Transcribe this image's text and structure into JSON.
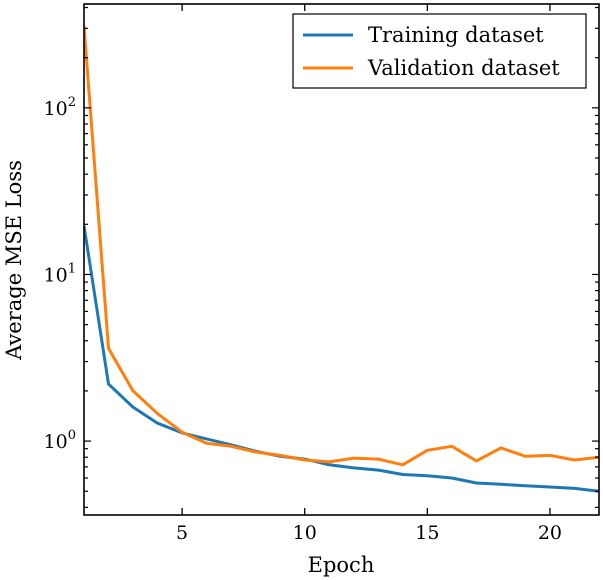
{
  "chart_data": {
    "type": "line",
    "title": "",
    "xlabel": "Epoch",
    "ylabel": "Average MSE Loss",
    "xlim": [
      1,
      22
    ],
    "ylim": [
      0.36,
      420
    ],
    "yscale": "log",
    "xticks": [
      5,
      10,
      15,
      20
    ],
    "xtick_labels": [
      "5",
      "10",
      "15",
      "20"
    ],
    "yticks": [
      1,
      10,
      100
    ],
    "ytick_labels": [
      {
        "base": "10",
        "exp": "0"
      },
      {
        "base": "10",
        "exp": "1"
      },
      {
        "base": "10",
        "exp": "2"
      }
    ],
    "legend_position": "top-right",
    "grid": false,
    "x": [
      1,
      2,
      3,
      4,
      5,
      6,
      7,
      8,
      9,
      10,
      11,
      12,
      13,
      14,
      15,
      16,
      17,
      18,
      19,
      20,
      21,
      22
    ],
    "series": [
      {
        "name": "Training dataset",
        "color": "#1f77b4",
        "values": [
          19.6,
          2.2,
          1.6,
          1.28,
          1.12,
          1.03,
          0.95,
          0.87,
          0.81,
          0.78,
          0.72,
          0.69,
          0.67,
          0.63,
          0.62,
          0.6,
          0.56,
          0.55,
          0.54,
          0.53,
          0.52,
          0.5
        ]
      },
      {
        "name": "Validation dataset",
        "color": "#ff7f0e",
        "values": [
          310,
          3.6,
          2.0,
          1.46,
          1.13,
          0.97,
          0.93,
          0.86,
          0.82,
          0.77,
          0.75,
          0.79,
          0.78,
          0.72,
          0.88,
          0.93,
          0.76,
          0.91,
          0.81,
          0.82,
          0.77,
          0.8
        ]
      }
    ]
  }
}
